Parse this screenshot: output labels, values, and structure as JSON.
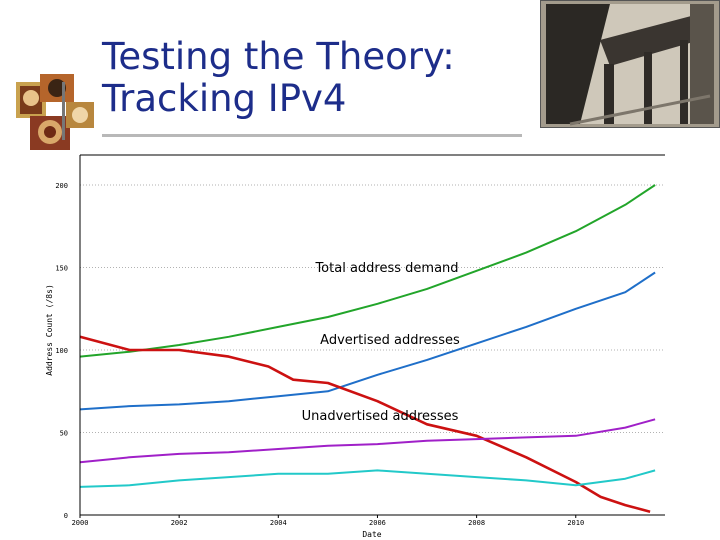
{
  "slide": {
    "title_line1": "Testing the Theory:",
    "title_line2": "Tracking IPv4"
  },
  "chart_data": {
    "type": "line",
    "title": "",
    "xlabel": "Date",
    "ylabel": "Address Count (/8s)",
    "xlim": [
      2000,
      2011.8
    ],
    "ylim": [
      0,
      200
    ],
    "x_ticks": [
      "2000",
      "2002",
      "2004",
      "2006",
      "2008",
      "2010"
    ],
    "y_ticks": [
      "0",
      "50",
      "100",
      "150",
      "200"
    ],
    "grid": "horizontal dotted",
    "series": [
      {
        "name": "Total address demand",
        "color": "#22a52a",
        "x": [
          2000,
          2001,
          2002,
          2003,
          2004,
          2005,
          2006,
          2007,
          2008,
          2009,
          2010,
          2011,
          2011.6
        ],
        "y": [
          96,
          99,
          103,
          108,
          114,
          120,
          128,
          137,
          148,
          159,
          172,
          188,
          200
        ]
      },
      {
        "name": "Advertised addresses",
        "color": "#1f6fc9",
        "x": [
          2000,
          2001,
          2002,
          2003,
          2004,
          2005,
          2006,
          2007,
          2008,
          2009,
          2010,
          2011,
          2011.6
        ],
        "y": [
          64,
          66,
          67,
          69,
          72,
          75,
          85,
          94,
          104,
          114,
          125,
          135,
          147
        ]
      },
      {
        "name": "Unadvertised addresses",
        "color": "#cc1111",
        "x": [
          2000,
          2001,
          2002,
          2003,
          2003.8,
          2004.3,
          2005,
          2006,
          2007,
          2008,
          2009,
          2010,
          2010.5,
          2011,
          2011.5
        ],
        "y": [
          108,
          100,
          100,
          96,
          90,
          82,
          80,
          69,
          55,
          48,
          35,
          20,
          11,
          6,
          2
        ]
      },
      {
        "name": "",
        "color": "#a020c8",
        "x": [
          2000,
          2001,
          2002,
          2003,
          2004,
          2005,
          2006,
          2007,
          2008,
          2009,
          2010,
          2011,
          2011.6
        ],
        "y": [
          32,
          35,
          37,
          38,
          40,
          42,
          43,
          45,
          46,
          47,
          48,
          53,
          58
        ]
      },
      {
        "name": "",
        "color": "#22c9c9",
        "x": [
          2000,
          2001,
          2002,
          2003,
          2004,
          2005,
          2006,
          2007,
          2008,
          2009,
          2010,
          2011,
          2011.6
        ],
        "y": [
          17,
          18,
          21,
          23,
          25,
          25,
          27,
          25,
          23,
          21,
          18,
          22,
          27
        ]
      }
    ]
  }
}
